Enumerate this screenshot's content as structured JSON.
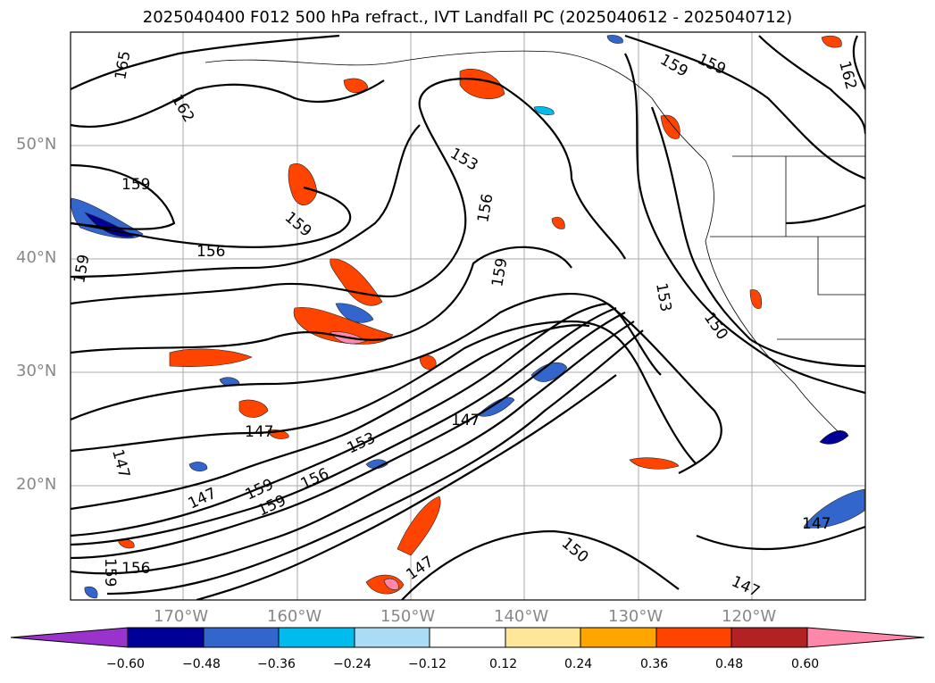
{
  "title": "2025040400 F012 500 hPa refract., IVT Landfall PC (2025040612 - 2025040712)",
  "lat_labels": [
    "50°N",
    "40°N",
    "30°N",
    "20°N"
  ],
  "lon_labels": [
    "170°W",
    "160°W",
    "150°W",
    "140°W",
    "130°W",
    "120°W"
  ],
  "colorbar": {
    "ticks": [
      "−0.60",
      "−0.48",
      "−0.36",
      "−0.24",
      "−0.12",
      "0.12",
      "0.24",
      "0.36",
      "0.48",
      "0.60"
    ],
    "colors": [
      "#9933cc",
      "#000099",
      "#3366cc",
      "#00bbee",
      "#aaddf5",
      "#ffffff",
      "#ffe699",
      "#ffa500",
      "#ff4400",
      "#b22222",
      "#ff88aa"
    ]
  },
  "contour_labels": [
    "165",
    "162",
    "159",
    "159",
    "156",
    "159",
    "153",
    "156",
    "159",
    "153",
    "150",
    "147",
    "147",
    "153",
    "147",
    "159",
    "159",
    "156",
    "147",
    "150",
    "147",
    "147",
    "156",
    "159",
    "159",
    "159",
    "162"
  ]
}
